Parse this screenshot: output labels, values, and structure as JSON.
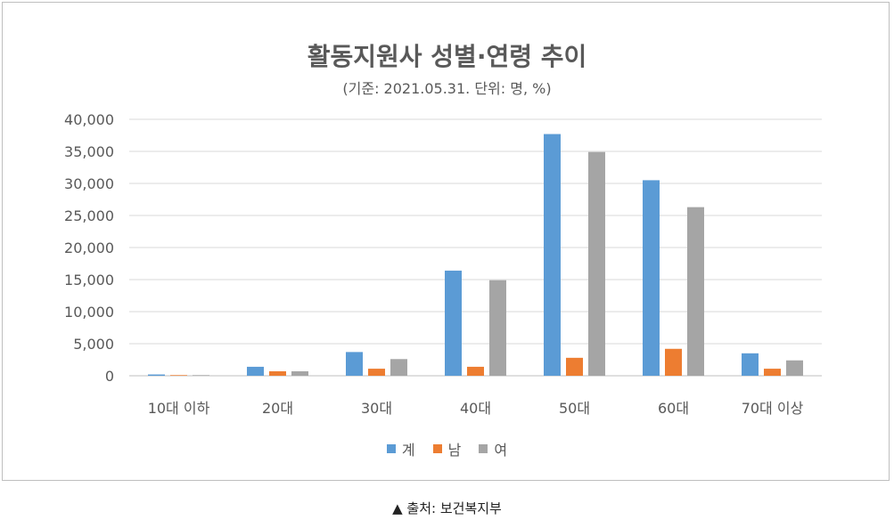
{
  "chart_data": {
    "type": "bar",
    "title": "활동지원사 성별·연령 추이",
    "subtitle": "(기준: 2021.05.31. 단위: 명, %)",
    "categories": [
      "10대 이하",
      "20대",
      "30대",
      "40대",
      "50대",
      "60대",
      "70대 이상"
    ],
    "series": [
      {
        "name": "계",
        "color": "#5b9bd5",
        "values": [
          200,
          1400,
          3700,
          16400,
          37700,
          30500,
          3500
        ]
      },
      {
        "name": "남",
        "color": "#ed7d31",
        "values": [
          100,
          700,
          1100,
          1400,
          2800,
          4200,
          1100
        ]
      },
      {
        "name": "여",
        "color": "#a5a5a5",
        "values": [
          100,
          700,
          2600,
          14900,
          34900,
          26300,
          2400
        ]
      }
    ],
    "y_ticks": [
      "0",
      "5,000",
      "10,000",
      "15,000",
      "20,000",
      "25,000",
      "30,000",
      "35,000",
      "40,000"
    ],
    "ylim": [
      0,
      40000
    ],
    "grid": true,
    "legend_position": "bottom"
  },
  "caption": "▲ 출처: 보건복지부"
}
